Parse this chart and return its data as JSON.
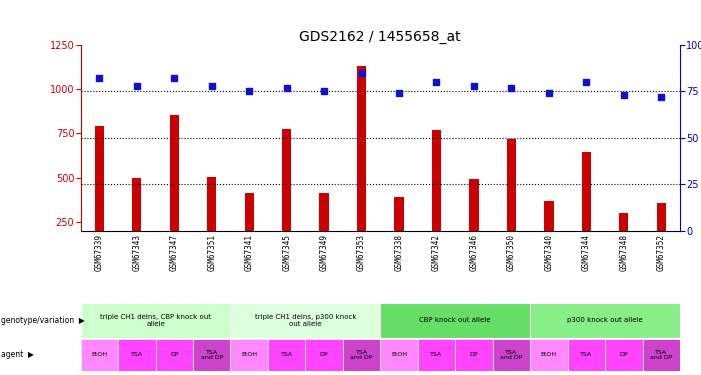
{
  "title": "GDS2162 / 1455658_at",
  "samples": [
    "GSM67339",
    "GSM67343",
    "GSM67347",
    "GSM67351",
    "GSM67341",
    "GSM67345",
    "GSM67349",
    "GSM67353",
    "GSM67338",
    "GSM67342",
    "GSM67346",
    "GSM67350",
    "GSM67340",
    "GSM67344",
    "GSM67348",
    "GSM67352"
  ],
  "counts": [
    790,
    495,
    855,
    505,
    415,
    775,
    415,
    1130,
    390,
    770,
    490,
    720,
    365,
    645,
    300,
    355
  ],
  "percentiles": [
    82,
    78,
    82,
    78,
    75,
    77,
    75,
    85,
    74,
    80,
    78,
    77,
    74,
    80,
    73,
    72
  ],
  "ylim_left": [
    200,
    1250
  ],
  "ylim_right": [
    0,
    100
  ],
  "yticks_left": [
    250,
    500,
    750,
    1000,
    1250
  ],
  "yticks_right": [
    0,
    25,
    50,
    75,
    100
  ],
  "bar_color": "#cc0000",
  "dot_color": "#1111cc",
  "genotype_groups": [
    {
      "label": "triple CH1 delns, CBP knock out\nallele",
      "start": 0,
      "end": 4,
      "color": "#ccffcc"
    },
    {
      "label": "triple CH1 delns, p300 knock\nout allele",
      "start": 4,
      "end": 8,
      "color": "#ddffdd"
    },
    {
      "label": "CBP knock out allele",
      "start": 8,
      "end": 12,
      "color": "#66dd66"
    },
    {
      "label": "p300 knock out allele",
      "start": 12,
      "end": 16,
      "color": "#88ee88"
    }
  ],
  "agent_labels": [
    "EtOH",
    "TSA",
    "DP",
    "TSA\nand DP",
    "EtOH",
    "TSA",
    "DP",
    "TSA\nand DP",
    "EtOH",
    "TSA",
    "DP",
    "TSA\nand DP",
    "EtOH",
    "TSA",
    "DP",
    "TSA\nand DP"
  ],
  "agent_colors": [
    "#ff88ff",
    "#ff44ff",
    "#ff44ff",
    "#cc44cc",
    "#ff88ff",
    "#ff44ff",
    "#ff44ff",
    "#cc44cc",
    "#ff88ff",
    "#ff44ff",
    "#ff44ff",
    "#cc44cc",
    "#ff88ff",
    "#ff44ff",
    "#ff44ff",
    "#cc44cc"
  ],
  "bg_color": "#ffffff",
  "tick_color_left": "#cc0000",
  "tick_color_right": "#0000cc",
  "xtick_bg": "#cccccc",
  "bar_width": 0.25,
  "dot_size": 18,
  "pct_marker": "s"
}
